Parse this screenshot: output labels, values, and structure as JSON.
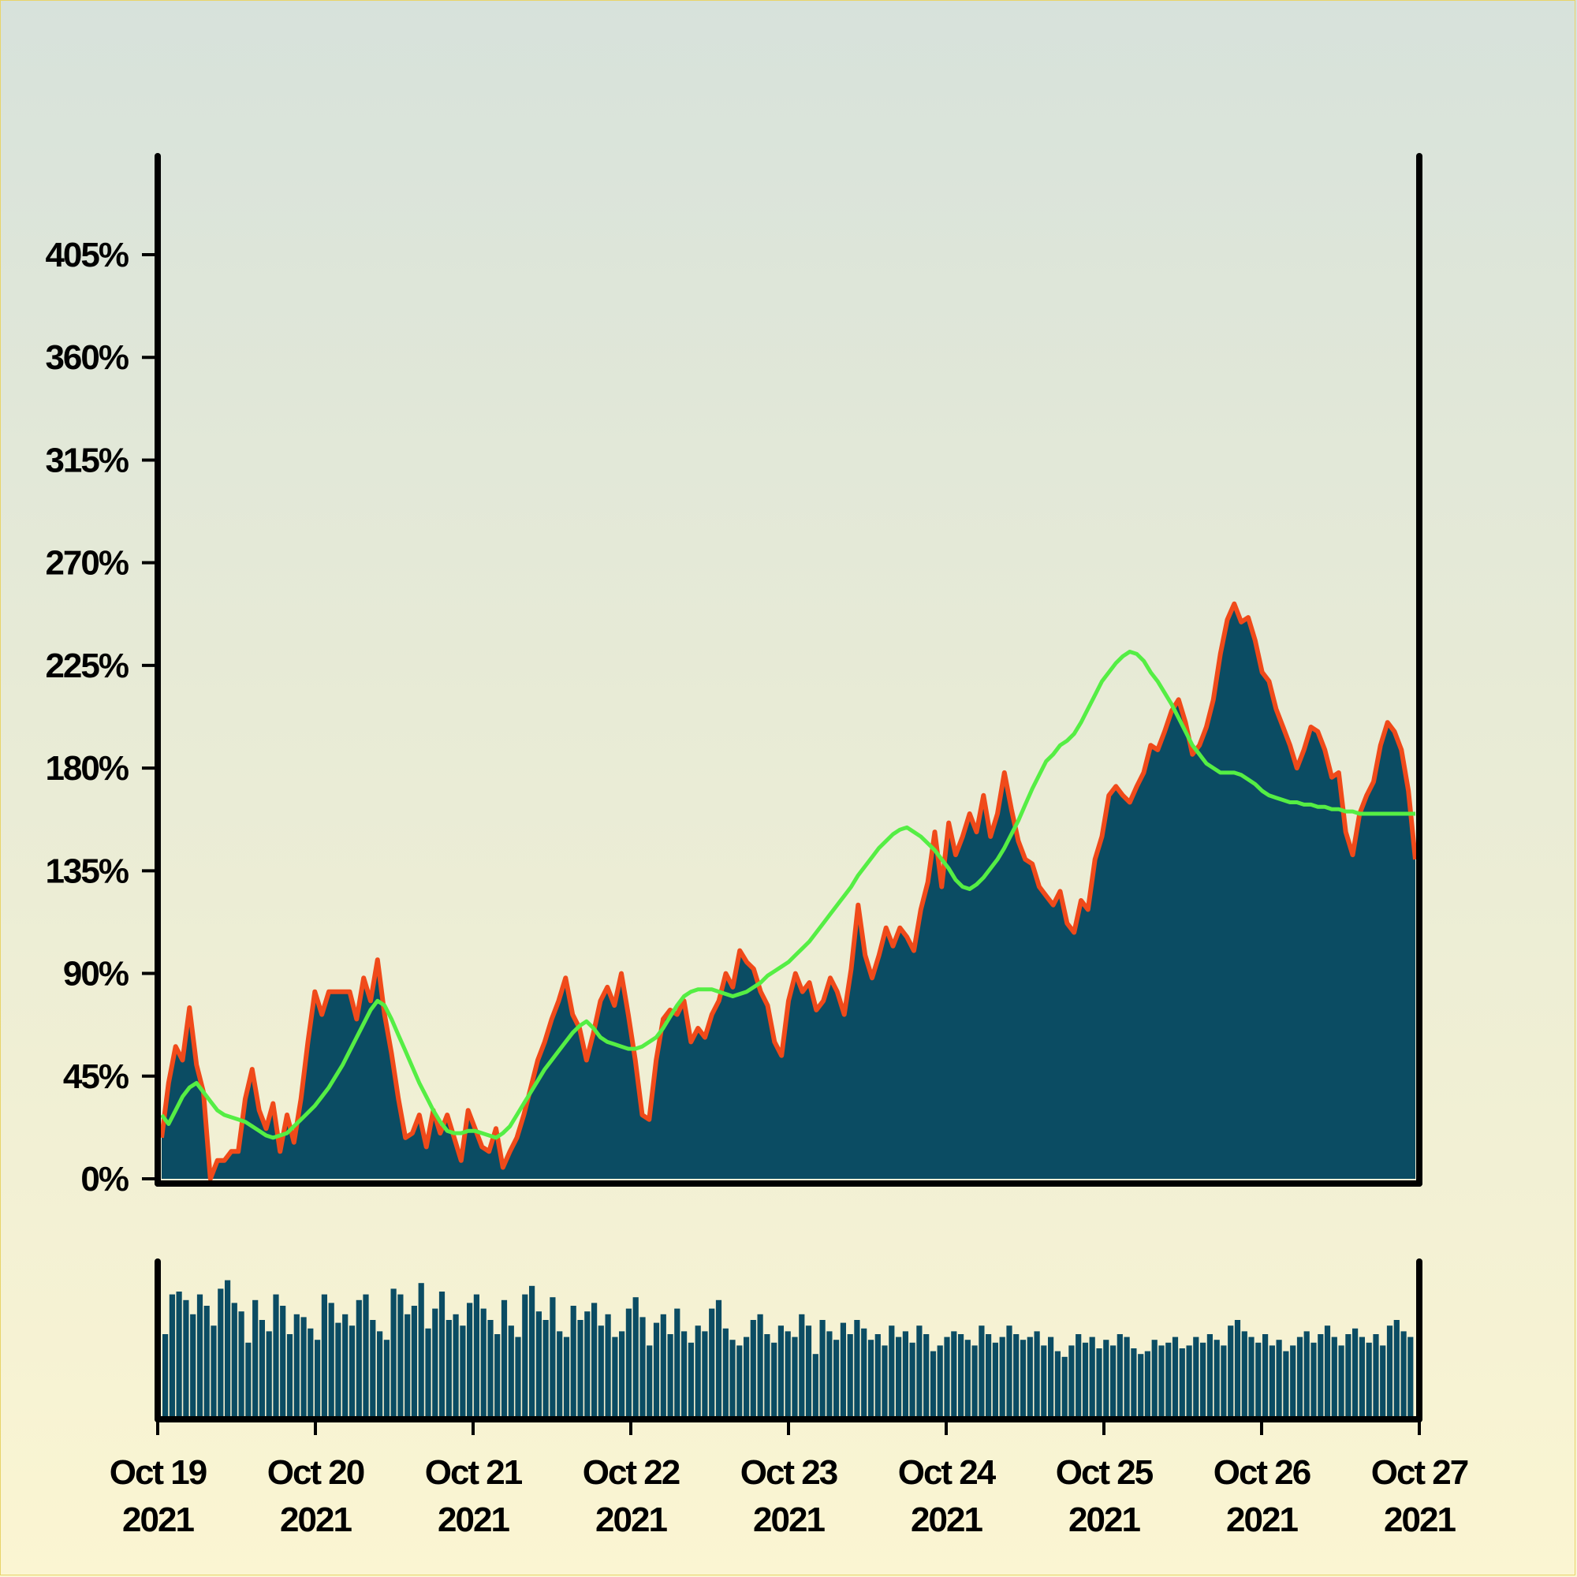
{
  "chart_data": [
    {
      "type": "area",
      "name": "price",
      "x_start": "2021-10-19T00:00",
      "x_step_hours": 2,
      "y_format": "percent",
      "ylim": [
        0,
        450
      ],
      "yticks": [
        0,
        45,
        90,
        135,
        180,
        225,
        270,
        315,
        360,
        405
      ],
      "ytick_labels": [
        "0%",
        "45%",
        "90%",
        "135%",
        "180%",
        "225%",
        "270%",
        "315%",
        "360%",
        "405%"
      ],
      "xtick_labels": [
        [
          "Oct 19",
          "2021"
        ],
        [
          "Oct 20",
          "2021"
        ],
        [
          "Oct 21",
          "2021"
        ],
        [
          "Oct 22",
          "2021"
        ],
        [
          "Oct 23",
          "2021"
        ],
        [
          "Oct 24",
          "2021"
        ],
        [
          "Oct 25",
          "2021"
        ],
        [
          "Oct 26",
          "2021"
        ],
        [
          "Oct 27",
          "2021"
        ]
      ],
      "series": [
        {
          "values": [
            18,
            42,
            58,
            52,
            75,
            50,
            38,
            0,
            8,
            8,
            12,
            12,
            35,
            48,
            30,
            22,
            33,
            12,
            28,
            16,
            35,
            60,
            82,
            72,
            82,
            82,
            82,
            82,
            70,
            88,
            78,
            96,
            72,
            55,
            35,
            18,
            20,
            28,
            14,
            30,
            20,
            28,
            18,
            8,
            30,
            22,
            14,
            12,
            22,
            5,
            12,
            18,
            28,
            40,
            52,
            60,
            70,
            78,
            88,
            72,
            66,
            52,
            64,
            78,
            84,
            76,
            90,
            72,
            52,
            28,
            26,
            52,
            70,
            74,
            72,
            78,
            60,
            66,
            62,
            72,
            78,
            90,
            84,
            100,
            95,
            92,
            82,
            76,
            60,
            54,
            78,
            90,
            82,
            86,
            74,
            78,
            88,
            82,
            72,
            92,
            120,
            98,
            88,
            98,
            110,
            102,
            110,
            106,
            100,
            118,
            130,
            152,
            128,
            156,
            142,
            150,
            160,
            152,
            168,
            150,
            160,
            178,
            162,
            148,
            140,
            138,
            128,
            124,
            120,
            126,
            112,
            108,
            122,
            118,
            140,
            150,
            168,
            172,
            168,
            165,
            172,
            178,
            190,
            188,
            196,
            205,
            210,
            200,
            186,
            190,
            198,
            210,
            230,
            245,
            252,
            244,
            246,
            236,
            222,
            218,
            206,
            198,
            190,
            180,
            188,
            198,
            196,
            188,
            176,
            178,
            152,
            142,
            160,
            168,
            174,
            190,
            200,
            196,
            188,
            170,
            140
          ]
        },
        {
          "name": "moving-average",
          "color": "#55ee44",
          "values": [
            28,
            24,
            30,
            36,
            40,
            42,
            38,
            34,
            30,
            28,
            27,
            26,
            25,
            23,
            21,
            19,
            18,
            19,
            20,
            23,
            26,
            29,
            32,
            36,
            40,
            45,
            50,
            56,
            62,
            68,
            74,
            78,
            76,
            70,
            63,
            56,
            49,
            42,
            36,
            30,
            25,
            21,
            20,
            20,
            21,
            21,
            20,
            19,
            18,
            20,
            23,
            28,
            33,
            38,
            43,
            48,
            52,
            56,
            60,
            64,
            67,
            69,
            66,
            62,
            60,
            59,
            58,
            57,
            57,
            58,
            60,
            62,
            66,
            71,
            76,
            80,
            82,
            83,
            83,
            83,
            82,
            81,
            80,
            81,
            82,
            84,
            86,
            89,
            91,
            93,
            95,
            98,
            101,
            104,
            108,
            112,
            116,
            120,
            124,
            128,
            133,
            137,
            141,
            145,
            148,
            151,
            153,
            154,
            152,
            150,
            147,
            144,
            140,
            136,
            131,
            128,
            127,
            129,
            132,
            136,
            140,
            145,
            151,
            157,
            164,
            171,
            177,
            183,
            186,
            190,
            192,
            195,
            200,
            206,
            212,
            218,
            222,
            226,
            229,
            231,
            230,
            227,
            222,
            218,
            213,
            208,
            202,
            196,
            190,
            186,
            182,
            180,
            178,
            178,
            178,
            177,
            175,
            173,
            170,
            168,
            167,
            166,
            165,
            165,
            164,
            164,
            163,
            163,
            162,
            162,
            161,
            161,
            160,
            160,
            160,
            160,
            160,
            160,
            160,
            160,
            160
          ]
        }
      ]
    },
    {
      "type": "bar",
      "name": "volume",
      "values": [
        60,
        88,
        90,
        84,
        74,
        88,
        80,
        66,
        92,
        98,
        82,
        76,
        54,
        84,
        70,
        62,
        88,
        80,
        60,
        74,
        72,
        64,
        56,
        88,
        82,
        68,
        74,
        66,
        84,
        88,
        70,
        62,
        56,
        92,
        88,
        74,
        80,
        96,
        64,
        78,
        90,
        70,
        74,
        66,
        82,
        88,
        78,
        70,
        60,
        84,
        66,
        58,
        88,
        94,
        76,
        70,
        86,
        62,
        58,
        80,
        70,
        76,
        82,
        66,
        74,
        58,
        62,
        78,
        86,
        72,
        52,
        68,
        74,
        60,
        78,
        62,
        54,
        66,
        62,
        78,
        84,
        64,
        56,
        52,
        58,
        70,
        74,
        60,
        54,
        66,
        62,
        58,
        74,
        66,
        46,
        70,
        62,
        56,
        68,
        60,
        70,
        64,
        56,
        60,
        52,
        66,
        58,
        62,
        54,
        66,
        60,
        48,
        52,
        58,
        62,
        60,
        56,
        52,
        66,
        60,
        54,
        58,
        66,
        60,
        56,
        58,
        62,
        52,
        58,
        48,
        44,
        52,
        60,
        54,
        58,
        50,
        56,
        52,
        60,
        58,
        50,
        46,
        48,
        56,
        52,
        54,
        58,
        50,
        52,
        58,
        54,
        60,
        56,
        52,
        66,
        70,
        62,
        58,
        54,
        60,
        52,
        56,
        48,
        52,
        58,
        62,
        54,
        60,
        66,
        58,
        52,
        60,
        64,
        58,
        54,
        60,
        52,
        66,
        70,
        62,
        58
      ]
    }
  ]
}
